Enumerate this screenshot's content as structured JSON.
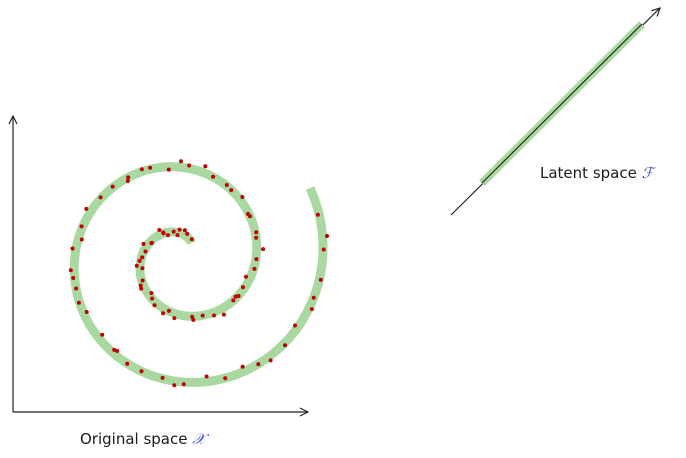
{
  "labels": {
    "original_text": "Original space",
    "original_symbol": "𝒳",
    "latent_text": "Latent space",
    "latent_symbol": "ℱ"
  },
  "colors": {
    "manifold": "#a9d8a0",
    "points": "#c00000",
    "axes": "#222222",
    "symbol": "#3a4fd0"
  }
}
